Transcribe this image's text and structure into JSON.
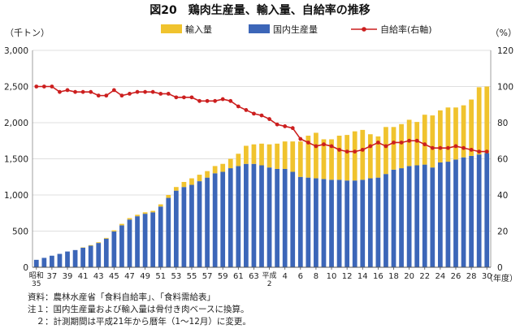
{
  "chart_data": {
    "type": "bar",
    "title": "図20　鶏肉生産量、輸入量、自給率の推移",
    "y_left_unit": "（千トン）",
    "y_right_unit": "（%）",
    "x_unit": "（年度）",
    "ylim_left": [
      0,
      3000
    ],
    "ylim_right": [
      0,
      120
    ],
    "yticks_left": [
      "0",
      "500",
      "1,000",
      "1,500",
      "2,000",
      "2,500",
      "3,000"
    ],
    "yticks_right": [
      "0",
      "20",
      "40",
      "60",
      "80",
      "100",
      "120"
    ],
    "grid": true,
    "legend_position": "top",
    "stacked": true,
    "colors": {
      "domestic": "#3c66b8",
      "imports": "#f0c32e",
      "rate": "#cc1f1f"
    },
    "legend": [
      "輸入量",
      "国内生産量",
      "自給率(右軸)"
    ],
    "categories": [
      "昭和35",
      "36",
      "37",
      "38",
      "39",
      "40",
      "41",
      "42",
      "43",
      "44",
      "45",
      "46",
      "47",
      "48",
      "49",
      "50",
      "51",
      "52",
      "53",
      "54",
      "55",
      "56",
      "57",
      "58",
      "59",
      "60",
      "61",
      "62",
      "63",
      "平成元",
      "平成2",
      "3",
      "4",
      "5",
      "6",
      "7",
      "8",
      "9",
      "10",
      "11",
      "12",
      "13",
      "14",
      "15",
      "16",
      "17",
      "18",
      "19",
      "20",
      "21",
      "22",
      "23",
      "24",
      "25",
      "26",
      "27",
      "28",
      "29",
      "30"
    ],
    "tick_labels": [
      "昭和35",
      "37",
      "39",
      "41",
      "43",
      "45",
      "47",
      "49",
      "51",
      "53",
      "55",
      "57",
      "59",
      "61",
      "63",
      "平成2",
      "4",
      "6",
      "8",
      "10",
      "12",
      "14",
      "16",
      "18",
      "20",
      "22",
      "24",
      "26",
      "28",
      "30"
    ],
    "series": [
      {
        "name": "国内生産量",
        "values": [
          103,
          130,
          160,
          185,
          218,
          238,
          270,
          298,
          336,
          396,
          496,
          580,
          660,
          706,
          740,
          760,
          840,
          960,
          1060,
          1110,
          1140,
          1190,
          1240,
          1300,
          1320,
          1370,
          1400,
          1430,
          1430,
          1410,
          1380,
          1360,
          1360,
          1320,
          1250,
          1240,
          1230,
          1220,
          1210,
          1210,
          1200,
          1200,
          1210,
          1230,
          1240,
          1290,
          1350,
          1370,
          1400,
          1410,
          1420,
          1380,
          1450,
          1460,
          1490,
          1520,
          1540,
          1560,
          1580
        ]
      },
      {
        "name": "輸入量",
        "values": [
          0,
          0,
          0,
          0,
          0,
          0,
          5,
          8,
          10,
          10,
          15,
          20,
          20,
          20,
          20,
          20,
          30,
          40,
          50,
          70,
          90,
          90,
          90,
          100,
          110,
          130,
          170,
          250,
          270,
          300,
          320,
          350,
          380,
          420,
          490,
          580,
          630,
          550,
          560,
          610,
          630,
          680,
          690,
          610,
          570,
          650,
          590,
          610,
          640,
          600,
          690,
          720,
          720,
          750,
          720,
          720,
          780,
          930,
          920
        ]
      },
      {
        "name": "自給率(右軸)",
        "values": [
          100,
          100,
          100,
          97,
          98,
          97,
          97,
          97,
          95,
          95,
          98,
          95,
          96,
          97,
          97,
          97,
          96,
          96,
          94,
          94,
          94,
          92,
          92,
          92,
          93,
          92,
          89,
          87,
          85,
          84,
          82,
          79,
          78,
          77,
          71,
          69,
          67,
          68,
          67,
          65,
          64,
          64,
          65,
          67,
          69,
          67,
          69,
          69,
          70,
          70,
          68,
          66,
          66,
          66,
          67,
          66,
          65,
          64,
          64
        ]
      }
    ]
  },
  "notes": [
    "資料：農林水産省「食料自給率」、「食料需給表」",
    "注１：国内生産量および輸入量は骨付き肉ベースに換算。",
    "　２：計測期間は平成21年から暦年（1〜12月）に変更。"
  ]
}
